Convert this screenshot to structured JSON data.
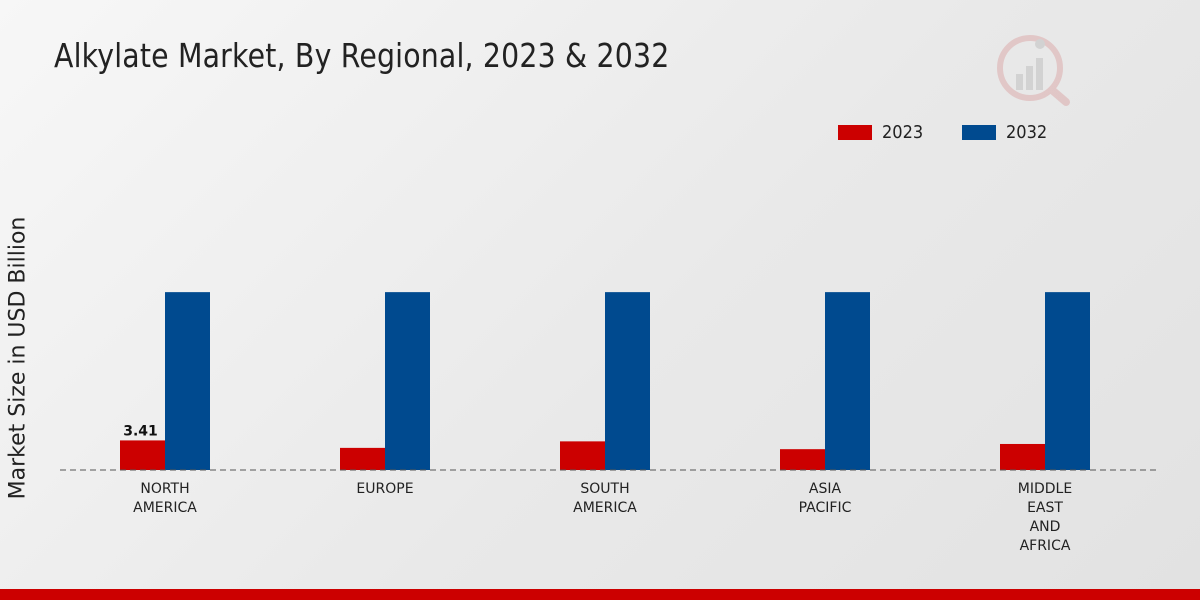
{
  "chart_data": {
    "type": "bar",
    "title": "Alkylate Market, By Regional, 2023 & 2032",
    "ylabel": "Market Size in USD Billion",
    "xlabel": "",
    "categories": [
      [
        "NORTH",
        "AMERICA"
      ],
      [
        "EUROPE"
      ],
      [
        "SOUTH",
        "AMERICA"
      ],
      [
        "ASIA",
        "PACIFIC"
      ],
      [
        "MIDDLE",
        "EAST",
        "AND",
        "AFRICA"
      ]
    ],
    "series": [
      {
        "name": "2023",
        "color": "#cc0000",
        "values": [
          3.41,
          2.55,
          3.3,
          2.4,
          3.0
        ]
      },
      {
        "name": "2032",
        "color": "#004a8f",
        "values": [
          20.5,
          20.5,
          20.5,
          20.5,
          20.5
        ]
      }
    ],
    "data_labels": [
      {
        "series": 0,
        "index": 0,
        "text": "3.41"
      }
    ],
    "ylim": [
      0,
      34
    ],
    "legend_position": "top-right",
    "grid": false
  },
  "legend": {
    "items": [
      {
        "label": "2023",
        "color": "#cc0000"
      },
      {
        "label": "2032",
        "color": "#004a8f"
      }
    ]
  },
  "branding": {
    "accent_color": "#cc0000",
    "logo_icon": "magnifier-chart-icon"
  }
}
